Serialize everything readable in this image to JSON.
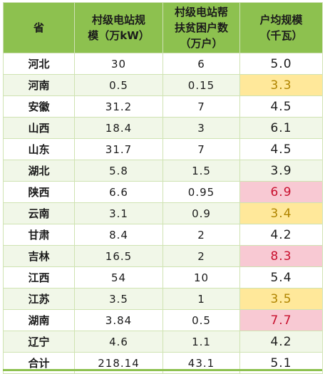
{
  "table": {
    "headers": [
      [
        "省"
      ],
      [
        "村级电站规",
        "模（万kW）"
      ],
      [
        "村级电站帮",
        "扶贫困户数",
        "（万户）"
      ],
      [
        "户均规模",
        "（千瓦）"
      ]
    ],
    "rows": [
      {
        "province": "河北",
        "capacity": "30",
        "households": "6",
        "avg": "5.0",
        "highlight": "none"
      },
      {
        "province": "河南",
        "capacity": "0.5",
        "households": "0.15",
        "avg": "3.3",
        "highlight": "yellow"
      },
      {
        "province": "安徽",
        "capacity": "31.2",
        "households": "7",
        "avg": "4.5",
        "highlight": "none"
      },
      {
        "province": "山西",
        "capacity": "18.4",
        "households": "3",
        "avg": "6.1",
        "highlight": "none"
      },
      {
        "province": "山东",
        "capacity": "31.7",
        "households": "7",
        "avg": "4.5",
        "highlight": "none"
      },
      {
        "province": "湖北",
        "capacity": "5.8",
        "households": "1.5",
        "avg": "3.9",
        "highlight": "none"
      },
      {
        "province": "陕西",
        "capacity": "6.6",
        "households": "0.95",
        "avg": "6.9",
        "highlight": "pink"
      },
      {
        "province": "云南",
        "capacity": "3.1",
        "households": "0.9",
        "avg": "3.4",
        "highlight": "yellow"
      },
      {
        "province": "甘肃",
        "capacity": "8.4",
        "households": "2",
        "avg": "4.2",
        "highlight": "none"
      },
      {
        "province": "吉林",
        "capacity": "16.5",
        "households": "2",
        "avg": "8.3",
        "highlight": "pink"
      },
      {
        "province": "江西",
        "capacity": "54",
        "households": "10",
        "avg": "5.4",
        "highlight": "none"
      },
      {
        "province": "江苏",
        "capacity": "3.5",
        "households": "1",
        "avg": "3.5",
        "highlight": "yellow"
      },
      {
        "province": "湖南",
        "capacity": "3.84",
        "households": "0.5",
        "avg": "7.7",
        "highlight": "pink"
      },
      {
        "province": "辽宁",
        "capacity": "4.6",
        "households": "1.1",
        "avg": "4.2",
        "highlight": "none"
      },
      {
        "province": "合计",
        "capacity": "218.14",
        "households": "43.1",
        "avg": "5.1",
        "highlight": "none"
      }
    ],
    "colors": {
      "header_bg": "#8dc14f",
      "yellow_bg": "#ffe89a",
      "yellow_text": "#b08400",
      "pink_bg": "#f8c9d3",
      "pink_text": "#c8102e"
    }
  }
}
